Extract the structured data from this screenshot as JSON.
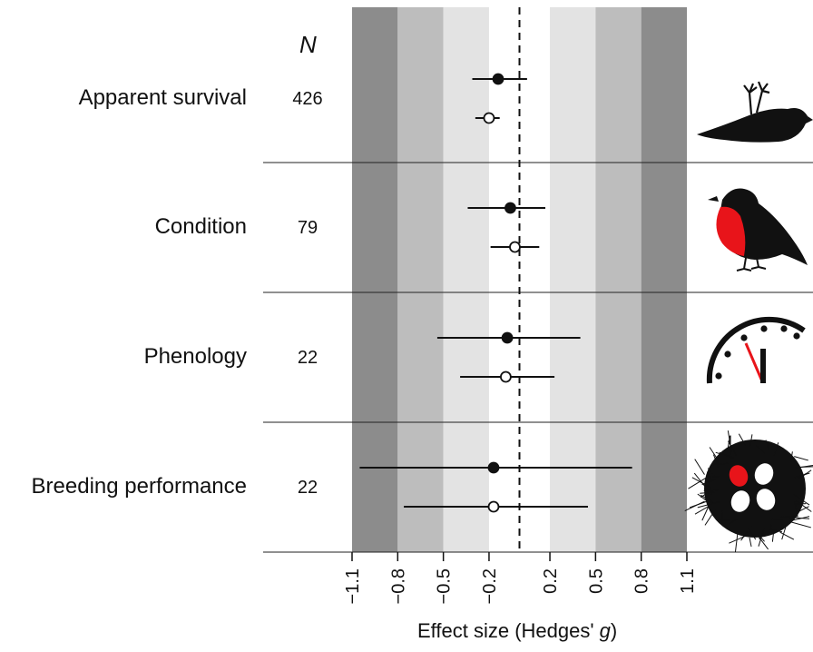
{
  "chart_data": {
    "type": "forest",
    "xlabel": "Effect size (Hedges' ",
    "xlabel_italic": "g",
    "xlabel_close": ")",
    "n_header": "N",
    "xlim": [
      -1.1,
      1.1
    ],
    "xticks": [
      -1.1,
      -0.8,
      -0.5,
      -0.2,
      0.2,
      0.5,
      0.8,
      1.1
    ],
    "xtick_labels": [
      "−1.1",
      "−0.8",
      "−0.5",
      "−0.2",
      "0.2",
      "0.5",
      "0.8",
      "1.1"
    ],
    "reference_line": 0,
    "shading_bands": [
      {
        "from": -1.1,
        "to": -0.8,
        "color": "#8c8c8c"
      },
      {
        "from": -0.8,
        "to": -0.5,
        "color": "#bdbdbd"
      },
      {
        "from": -0.5,
        "to": -0.2,
        "color": "#e3e3e3"
      },
      {
        "from": 0.2,
        "to": 0.5,
        "color": "#e3e3e3"
      },
      {
        "from": 0.5,
        "to": 0.8,
        "color": "#bdbdbd"
      },
      {
        "from": 0.8,
        "to": 1.1,
        "color": "#8c8c8c"
      }
    ],
    "categories": [
      {
        "label": "Apparent survival",
        "n": "426",
        "icon": "dead-bird-icon",
        "filled": {
          "est": -0.14,
          "lo": -0.31,
          "hi": 0.05
        },
        "open": {
          "est": -0.2,
          "lo": -0.29,
          "hi": -0.13
        }
      },
      {
        "label": "Condition",
        "n": "79",
        "icon": "robin-icon",
        "filled": {
          "est": -0.06,
          "lo": -0.34,
          "hi": 0.17
        },
        "open": {
          "est": -0.03,
          "lo": -0.19,
          "hi": 0.13
        }
      },
      {
        "label": "Phenology",
        "n": "22",
        "icon": "clock-icon",
        "filled": {
          "est": -0.08,
          "lo": -0.54,
          "hi": 0.4
        },
        "open": {
          "est": -0.09,
          "lo": -0.39,
          "hi": 0.23
        }
      },
      {
        "label": "Breeding performance",
        "n": "22",
        "icon": "nest-icon",
        "filled": {
          "est": -0.17,
          "lo": -1.05,
          "hi": 0.74
        },
        "open": {
          "est": -0.17,
          "lo": -0.76,
          "hi": 0.45
        }
      }
    ],
    "series": [
      {
        "marker": "filled"
      },
      {
        "marker": "open"
      }
    ],
    "accent_color": "#e8141a"
  }
}
